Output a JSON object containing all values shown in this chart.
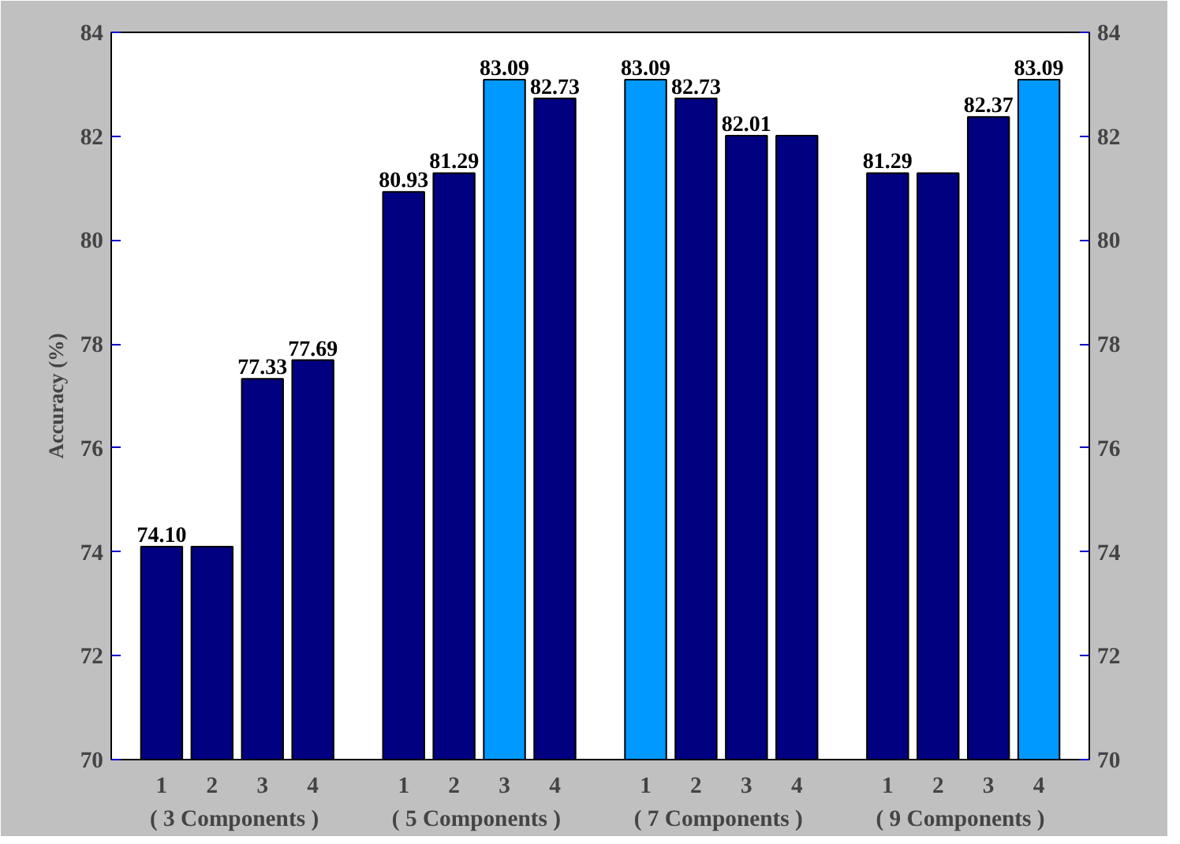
{
  "chart_data": {
    "type": "bar",
    "ylabel": "Accuracy (%)",
    "categories": [
      "1",
      "2",
      "3",
      "4",
      "1",
      "2",
      "3",
      "4",
      "1",
      "2",
      "3",
      "4",
      "1",
      "2",
      "3",
      "4"
    ],
    "values": [
      74.1,
      74.1,
      77.33,
      77.69,
      80.93,
      81.29,
      83.09,
      82.73,
      83.09,
      82.73,
      82.01,
      82.01,
      81.29,
      81.29,
      82.37,
      83.09
    ],
    "colors": [
      "#000080",
      "#000080",
      "#000080",
      "#000080",
      "#000080",
      "#000080",
      "#0099ff",
      "#000080",
      "#0099ff",
      "#000080",
      "#000080",
      "#000080",
      "#000080",
      "#000080",
      "#000080",
      "#0099ff"
    ],
    "value_labels": [
      "74.10",
      null,
      "77.33",
      "77.69",
      "80.93",
      "81.29",
      "83.09",
      "82.73",
      "83.09",
      "82.73",
      "82.01",
      null,
      "81.29",
      null,
      "82.37",
      "83.09"
    ],
    "ylim": [
      70,
      84
    ],
    "yticks": [
      70,
      72,
      74,
      76,
      78,
      80,
      82,
      84
    ],
    "y2lim": [
      70,
      84
    ],
    "y2ticks": [
      70,
      72,
      74,
      76,
      78,
      80,
      82,
      84
    ],
    "annotations": [
      "( 3  Components )",
      "( 5  Components )",
      "( 7  Components )",
      "( 9  Components )"
    ],
    "grid": false
  }
}
